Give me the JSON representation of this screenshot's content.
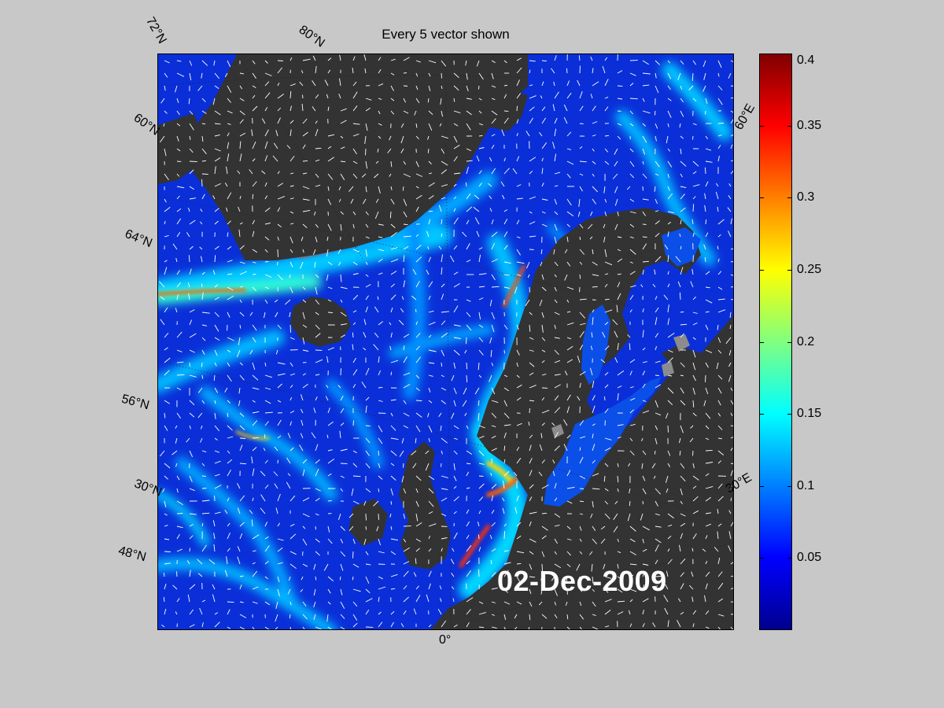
{
  "map": {
    "title": "Every 5 vector shown",
    "date": "02-Dec-2009",
    "lat_labels": [
      "72°N",
      "60°N",
      "64°N",
      "56°N",
      "30°N",
      "48°N"
    ],
    "top_label": "80°N",
    "lon_labels": [
      "0°",
      "60°E",
      "30°E"
    ]
  },
  "colorbar": {
    "colormap": "jet",
    "min": 0,
    "max": 0.4,
    "ticks": [
      "0.4",
      "0.35",
      "0.3",
      "0.25",
      "0.2",
      "0.15",
      "0.1",
      "0.05"
    ],
    "tick_values": [
      0.4,
      0.35,
      0.3,
      0.25,
      0.2,
      0.15,
      0.1,
      0.05
    ]
  },
  "colors": {
    "land": "#333333",
    "ocean_low": "#0a2fd8",
    "background": "#c8c8c8",
    "vectors": "#ffffff"
  }
}
